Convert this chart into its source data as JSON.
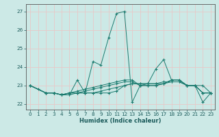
{
  "xlabel": "Humidex (Indice chaleur)",
  "xlim": [
    -0.5,
    23.5
  ],
  "ylim": [
    21.7,
    27.4
  ],
  "yticks": [
    22,
    23,
    24,
    25,
    26,
    27
  ],
  "xticks": [
    0,
    1,
    2,
    3,
    4,
    5,
    6,
    7,
    8,
    9,
    10,
    11,
    12,
    13,
    14,
    15,
    16,
    17,
    18,
    19,
    20,
    21,
    22,
    23
  ],
  "bg": "#cce9e6",
  "grid_color": "#e8c8c8",
  "lc": "#1a7a6e",
  "series": [
    {
      "x": [
        0,
        1,
        2,
        3,
        4,
        5,
        6,
        7,
        8,
        9,
        10,
        11,
        12,
        13,
        14,
        15,
        16,
        17,
        18,
        19,
        20,
        21,
        22,
        23
      ],
      "y": [
        23.0,
        22.8,
        22.6,
        22.6,
        22.5,
        22.5,
        23.3,
        22.6,
        24.3,
        24.1,
        25.6,
        26.9,
        27.0,
        22.1,
        23.0,
        23.1,
        23.9,
        24.4,
        23.3,
        23.3,
        23.0,
        23.0,
        22.1,
        22.6
      ]
    },
    {
      "x": [
        0,
        2,
        3,
        4,
        5,
        6,
        7,
        8,
        9,
        10,
        11,
        12,
        13,
        14,
        15,
        16,
        17,
        18,
        19,
        20,
        21,
        22,
        23
      ],
      "y": [
        23.0,
        22.6,
        22.6,
        22.5,
        22.5,
        22.6,
        22.6,
        22.6,
        22.6,
        22.6,
        22.7,
        23.0,
        23.1,
        23.1,
        23.1,
        23.1,
        23.1,
        23.3,
        23.3,
        23.0,
        23.0,
        22.6,
        22.6
      ]
    },
    {
      "x": [
        0,
        2,
        3,
        4,
        5,
        6,
        7,
        8,
        9,
        10,
        11,
        12,
        13,
        14,
        15,
        16,
        17,
        18,
        19,
        20,
        21,
        22,
        23
      ],
      "y": [
        23.0,
        22.6,
        22.6,
        22.5,
        22.6,
        22.6,
        22.6,
        22.6,
        22.7,
        22.8,
        22.9,
        23.0,
        23.1,
        23.1,
        23.1,
        23.1,
        23.2,
        23.2,
        23.2,
        23.0,
        23.0,
        23.0,
        22.6
      ]
    },
    {
      "x": [
        0,
        2,
        3,
        4,
        5,
        6,
        7,
        8,
        9,
        10,
        11,
        12,
        13,
        14,
        15,
        16,
        17,
        18,
        19,
        20,
        21,
        22,
        23
      ],
      "y": [
        23.0,
        22.6,
        22.6,
        22.5,
        22.6,
        22.7,
        22.8,
        22.9,
        23.0,
        23.1,
        23.2,
        23.3,
        23.3,
        23.0,
        23.0,
        23.0,
        23.1,
        23.3,
        23.3,
        23.0,
        23.0,
        22.6,
        22.6
      ]
    },
    {
      "x": [
        0,
        2,
        3,
        4,
        5,
        6,
        7,
        8,
        9,
        10,
        11,
        12,
        13,
        14,
        15,
        16,
        17,
        18,
        19,
        20,
        21,
        22,
        23
      ],
      "y": [
        23.0,
        22.6,
        22.6,
        22.5,
        22.6,
        22.6,
        22.7,
        22.8,
        22.9,
        23.0,
        23.1,
        23.2,
        23.2,
        23.0,
        23.0,
        23.0,
        23.1,
        23.2,
        23.2,
        23.0,
        23.0,
        22.6,
        22.6
      ]
    }
  ]
}
